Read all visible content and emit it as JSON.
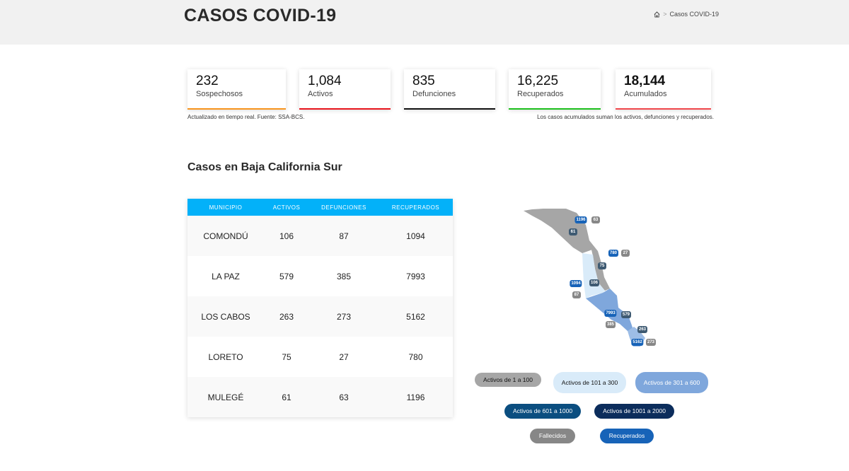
{
  "header": {
    "title": "CASOS COVID-19",
    "breadcrumb": "Casos COVID-19"
  },
  "stats": [
    {
      "value": "232",
      "label": "Sospechosos",
      "color": "#f7941d"
    },
    {
      "value": "1,084",
      "label": "Activos",
      "color": "#e8141c"
    },
    {
      "value": "835",
      "label": "Defunciones",
      "color": "#111111"
    },
    {
      "value": "16,225",
      "label": "Recuperados",
      "color": "#1cbf1c"
    },
    {
      "value": "18,144",
      "label": "Acumulados",
      "color": "#f0464b"
    }
  ],
  "notes": {
    "left": "Actualizado en tiempo real. Fuente: SSA-BCS.",
    "right": "Los casos acumulados suman los activos, defunciones y recuperados."
  },
  "section_title": "Casos en Baja California Sur",
  "table": {
    "headers": [
      "MUNICIPIO",
      "ACTIVOS",
      "DEFUNCIONES",
      "RECUPERADOS"
    ],
    "rows": [
      [
        "COMONDÚ",
        "106",
        "87",
        "1094"
      ],
      [
        "LA PAZ",
        "579",
        "385",
        "7993"
      ],
      [
        "LOS CABOS",
        "263",
        "273",
        "5162"
      ],
      [
        "LORETO",
        "75",
        "27",
        "780"
      ],
      [
        "MULEGÉ",
        "61",
        "63",
        "1196"
      ]
    ]
  },
  "map": {
    "labels": [
      {
        "text": "1196",
        "type": "recuperados"
      },
      {
        "text": "63",
        "type": "fallecidos"
      },
      {
        "text": "61",
        "type": "activos"
      },
      {
        "text": "780",
        "type": "recuperados"
      },
      {
        "text": "27",
        "type": "fallecidos"
      },
      {
        "text": "75",
        "type": "activos"
      },
      {
        "text": "1094",
        "type": "recuperados"
      },
      {
        "text": "87",
        "type": "fallecidos"
      },
      {
        "text": "106",
        "type": "activos"
      },
      {
        "text": "7993",
        "type": "recuperados"
      },
      {
        "text": "385",
        "type": "fallecidos"
      },
      {
        "text": "579",
        "type": "activos"
      },
      {
        "text": "263",
        "type": "activos"
      },
      {
        "text": "5162",
        "type": "recuperados"
      },
      {
        "text": "273",
        "type": "fallecidos"
      }
    ]
  },
  "legend": [
    {
      "label": "Activos de 1 a 100",
      "color": "#a6a6a6"
    },
    {
      "label": "Activos de 101 a 300",
      "color": "#d9ebf9"
    },
    {
      "label": "Activos de 301 a 600",
      "color": "#7fa7dc"
    },
    {
      "label": "Activos de 601 a 1000",
      "color": "#0b4e80"
    },
    {
      "label": "Activos de 1001 a 2000",
      "color": "#0c2d5c"
    },
    {
      "label": "Fallecidos",
      "color": "#878787"
    },
    {
      "label": "Recuperados",
      "color": "#1763b8"
    }
  ]
}
